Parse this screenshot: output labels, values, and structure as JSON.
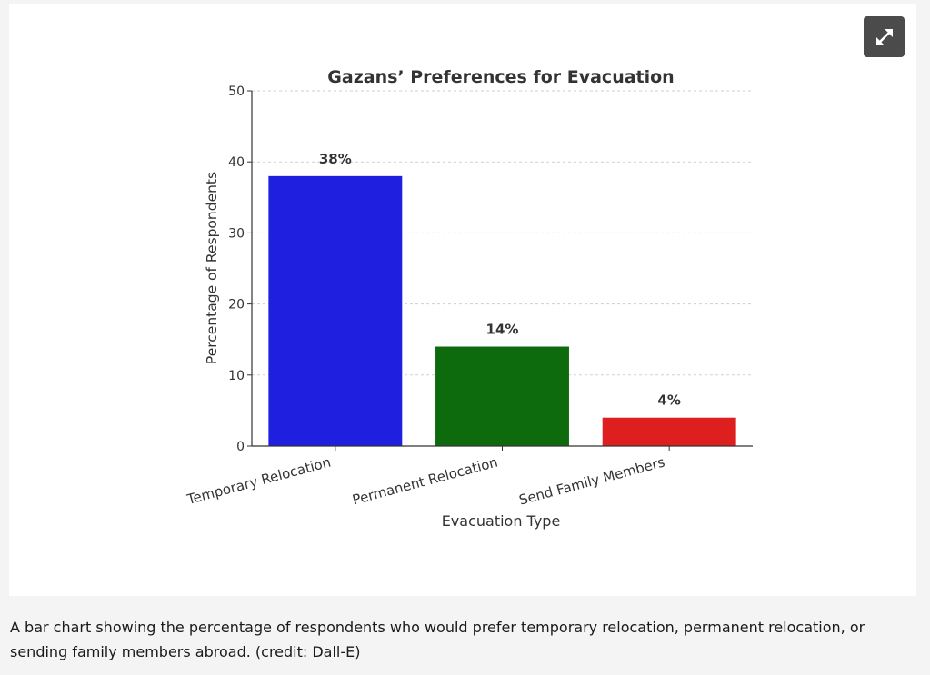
{
  "figure": {
    "expand_icon": "expand-arrows-icon",
    "caption": "A bar chart showing the percentage of respondents who would prefer temporary relocation, permanent relocation, or sending family members abroad. (credit: Dall-E)"
  },
  "chart_data": {
    "type": "bar",
    "title": "Gazans’ Preferences for Evacuation",
    "xlabel": "Evacuation Type",
    "ylabel": "Percentage of Respondents",
    "categories": [
      "Temporary Relocation",
      "Permanent Relocation",
      "Send Family Members"
    ],
    "values": [
      38,
      14,
      4
    ],
    "data_labels": [
      "38%",
      "14%",
      "4%"
    ],
    "colors": [
      "#1f1fdf",
      "#0d6b0d",
      "#dd1f1f"
    ],
    "ylim": [
      0,
      50
    ],
    "yticks": [
      0,
      10,
      20,
      30,
      40,
      50
    ],
    "grid": true,
    "grid_axis": "y"
  }
}
